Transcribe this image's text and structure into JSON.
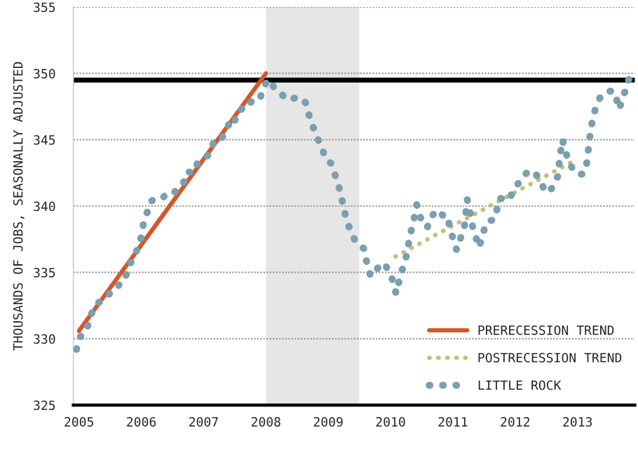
{
  "chart_data": {
    "type": "line",
    "ylabel": "THOUSANDS OF JOBS, SEASONALLY ADJUSTED",
    "xlim": [
      2004.91,
      2013.92
    ],
    "xticks": [
      2005,
      2006,
      2007,
      2008,
      2009,
      2010,
      2011,
      2012,
      2013
    ],
    "ylim": [
      325,
      355
    ],
    "yticks": [
      325,
      330,
      335,
      340,
      345,
      350,
      355
    ],
    "grid": "y",
    "legend": "bottom right",
    "marker": "none",
    "ref_lines": [
      {
        "axis": "y",
        "value": 349.5,
        "color": "#000000",
        "line_style": "solid"
      }
    ],
    "bands": [
      {
        "axis": "x",
        "from": 2008.0,
        "to": 2009.5,
        "color": "#e6e6e6"
      }
    ],
    "series": [
      {
        "name": "PRERECESSION TREND",
        "color": "#d4572a",
        "line_style": "solid",
        "x": [
          2005.0,
          2008.0
        ],
        "values": [
          330.6,
          350.0
        ]
      },
      {
        "name": "POSTRECESSION TREND",
        "color": "#c3c07a",
        "line_style": "dotted",
        "x": [
          2010.08,
          2012.94
        ],
        "values": [
          336.2,
          343.4
        ]
      },
      {
        "name": "LITTLE ROCK",
        "color": "#7a9fae",
        "line_style": "dotted",
        "x": [
          2004.96,
          2005.0,
          2005.05,
          2005.13,
          2005.17,
          2005.22,
          2005.3,
          2005.39,
          2005.49,
          2005.57,
          2005.65,
          2005.72,
          2005.77,
          2005.81,
          2005.89,
          2005.93,
          2005.97,
          2006.01,
          2006.04,
          2006.1,
          2006.14,
          2006.23,
          2006.34,
          2006.42,
          2006.53,
          2006.59,
          2006.68,
          2006.74,
          2006.83,
          2006.9,
          2007.01,
          2007.09,
          2007.14,
          2007.21,
          2007.29,
          2007.35,
          2007.41,
          2007.48,
          2007.53,
          2007.61,
          2007.66,
          2007.74,
          2007.81,
          2007.91,
          2007.97,
          2008.02,
          2008.08,
          2008.13,
          2008.21,
          2008.28,
          2008.36,
          2008.43,
          2008.51,
          2008.58,
          2008.65,
          2008.71,
          2008.78,
          2008.84,
          2008.9,
          2008.95,
          2009.05,
          2009.12,
          2009.18,
          2009.23,
          2009.27,
          2009.32,
          2009.38,
          2009.44,
          2009.57,
          2009.6,
          2009.64,
          2009.68,
          2009.75,
          2009.81,
          2009.91,
          2009.96,
          2010.02,
          2010.06,
          2010.09,
          2010.13,
          2010.18,
          2010.23,
          2010.27,
          2010.29,
          2010.32,
          2010.35,
          2010.39,
          2010.42,
          2010.47,
          2010.52,
          2010.59,
          2010.64,
          2010.74,
          2010.84,
          2010.91,
          2010.96,
          2011.02,
          2011.06,
          2011.1,
          2011.15,
          2011.19,
          2011.23,
          2011.27,
          2011.29,
          2011.32,
          2011.34,
          2011.38,
          2011.41,
          2011.45,
          2011.49,
          2011.53,
          2011.6,
          2011.67,
          2011.71,
          2011.75,
          2011.82,
          2011.91,
          2011.97,
          2012.05,
          2012.14,
          2012.23,
          2012.33,
          2012.4,
          2012.46,
          2012.51,
          2012.58,
          2012.64,
          2012.68,
          2012.7,
          2012.72,
          2012.76,
          2012.79,
          2012.83,
          2012.87,
          2012.94,
          2013.0,
          2013.09,
          2013.14,
          2013.17,
          2013.2,
          2013.24,
          2013.28,
          2013.33,
          2013.39,
          2013.48,
          2013.57,
          2013.63,
          2013.67,
          2013.72,
          2013.76,
          2013.82,
          2013.89
        ],
        "values": [
          329.2,
          329.8,
          330.5,
          330.8,
          331.5,
          332.1,
          332.7,
          332.9,
          333.4,
          333.6,
          334.1,
          334.3,
          335.0,
          335.6,
          336.1,
          336.7,
          337.3,
          337.8,
          338.9,
          339.6,
          340.3,
          340.6,
          340.6,
          341.0,
          341.0,
          341.5,
          341.8,
          342.6,
          342.5,
          343.2,
          343.6,
          343.9,
          344.6,
          345.1,
          345.1,
          345.6,
          346.2,
          346.0,
          347.0,
          347.3,
          347.7,
          347.7,
          348.2,
          348.2,
          348.9,
          349.5,
          349.4,
          348.9,
          348.6,
          348.3,
          348.4,
          348.1,
          348.2,
          348.1,
          347.7,
          346.5,
          345.7,
          345.0,
          344.4,
          343.6,
          343.2,
          342.2,
          341.3,
          340.3,
          339.4,
          338.6,
          337.9,
          337.3,
          336.8,
          336.1,
          335.4,
          334.7,
          335.1,
          335.4,
          335.7,
          335.1,
          334.6,
          333.9,
          333.4,
          334.2,
          335.1,
          335.8,
          336.5,
          337.2,
          337.9,
          338.5,
          339.3,
          340.1,
          339.3,
          338.6,
          338.4,
          339.1,
          339.7,
          339.3,
          339.3,
          338.2,
          337.3,
          336.7,
          337.3,
          337.9,
          338.6,
          340.5,
          339.8,
          339.1,
          338.4,
          338.0,
          337.5,
          336.9,
          337.3,
          338.0,
          338.7,
          338.9,
          339.0,
          339.8,
          340.6,
          340.5,
          340.5,
          341.2,
          341.7,
          342.3,
          342.7,
          342.4,
          342.0,
          341.3,
          341.0,
          341.3,
          341.7,
          342.2,
          342.9,
          343.8,
          345.0,
          344.4,
          343.8,
          343.2,
          342.7,
          342.4,
          342.4,
          342.9,
          344.1,
          345.3,
          346.5,
          347.2,
          347.9,
          348.4,
          348.6,
          348.7,
          348.0,
          347.3,
          348.1,
          348.6,
          349.5,
          350.3
        ]
      }
    ]
  }
}
